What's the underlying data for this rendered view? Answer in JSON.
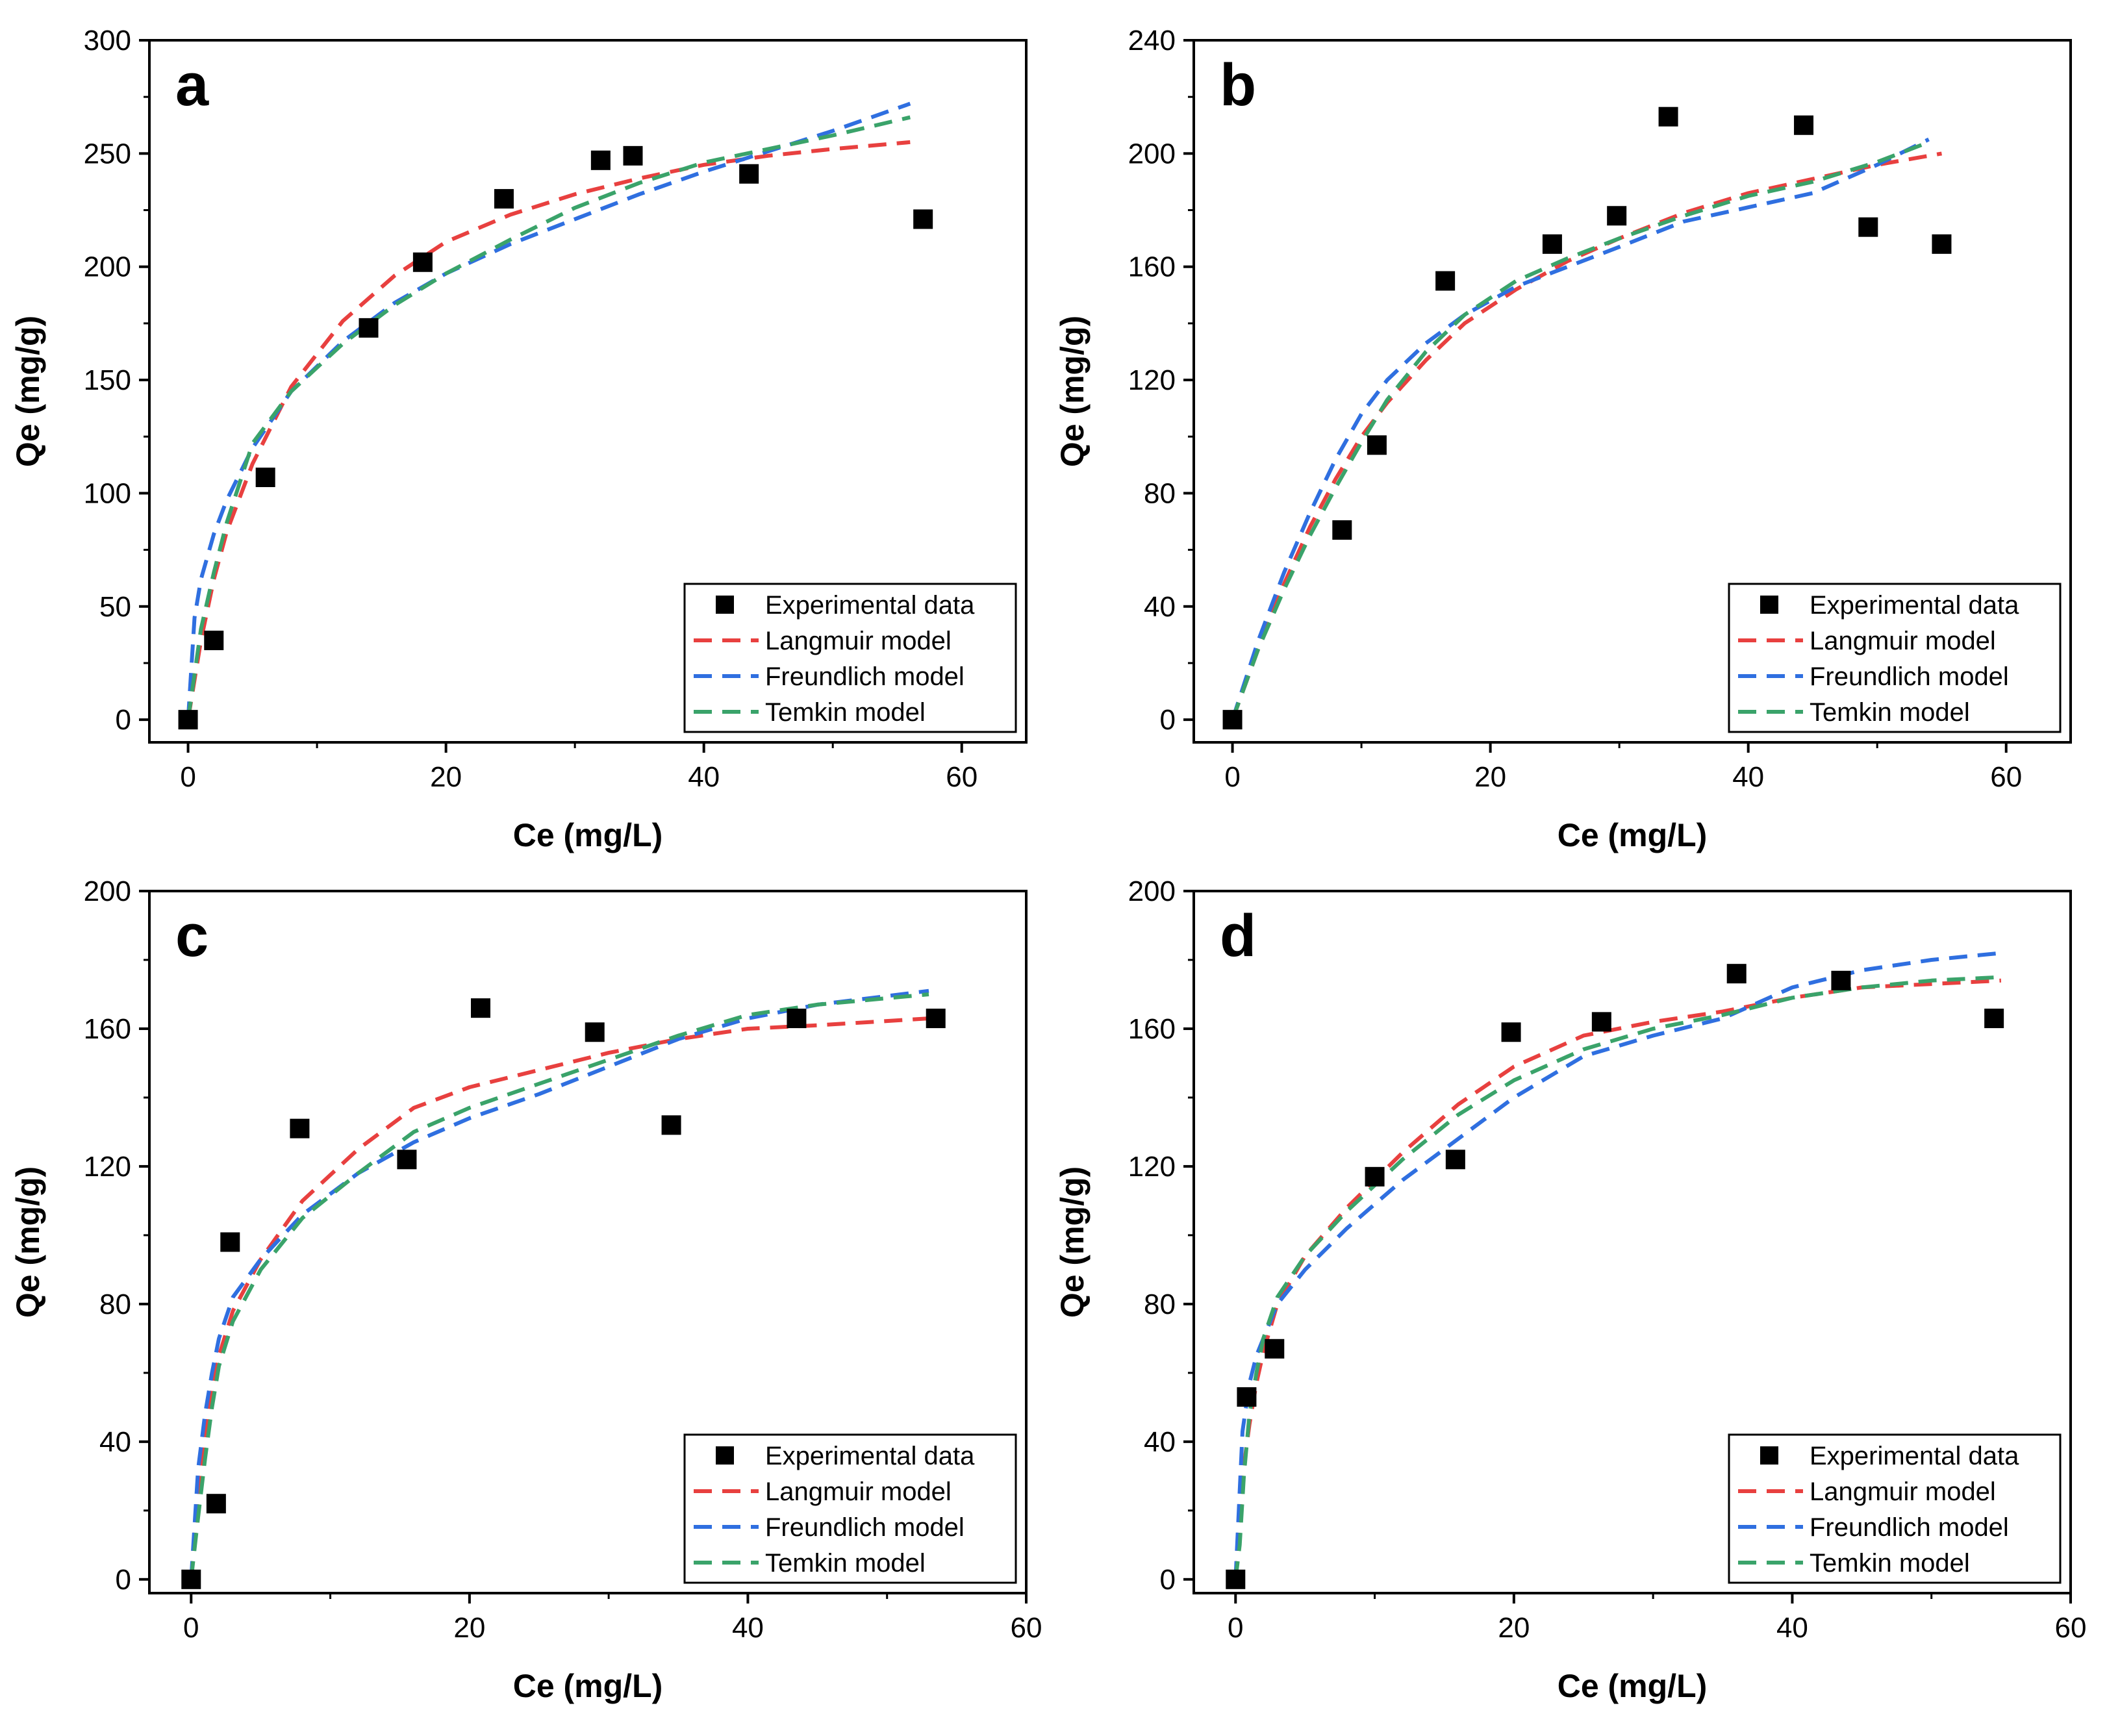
{
  "colors": {
    "langmuir": "#e8403f",
    "freundlich": "#2f6fe0",
    "temkin": "#3aa36a",
    "marker": "#000000"
  },
  "chart_data": [
    {
      "type": "scatter",
      "panel": "a",
      "xlabel": "Ce (mg/L)",
      "ylabel": "Qe (mg/g)",
      "xlim": [
        -3,
        65
      ],
      "ylim": [
        -10,
        300
      ],
      "xticks": [
        0,
        20,
        40,
        60
      ],
      "yticks": [
        0,
        50,
        100,
        150,
        200,
        250,
        300
      ],
      "legend_position": "bottom-right",
      "legend": [
        "Experimental data",
        "Langmuir model",
        "Freundlich model",
        "Temkin model"
      ],
      "series": [
        {
          "name": "Experimental data",
          "kind": "scatter",
          "x": [
            0,
            2,
            6,
            14,
            18.2,
            24.5,
            32,
            34.5,
            43.5,
            57
          ],
          "y": [
            0,
            35,
            107,
            173,
            202,
            230,
            247,
            249,
            241,
            221
          ]
        },
        {
          "name": "Langmuir model",
          "kind": "line",
          "x": [
            0,
            1,
            2,
            3,
            5,
            8,
            12,
            16,
            20,
            25,
            30,
            35,
            40,
            45,
            50,
            56
          ],
          "y": [
            0,
            35,
            62,
            83,
            113,
            147,
            176,
            196,
            211,
            223,
            232,
            239,
            245,
            249,
            252,
            255
          ]
        },
        {
          "name": "Freundlich model",
          "kind": "line",
          "x": [
            0,
            0.5,
            1,
            2,
            3,
            5,
            8,
            12,
            16,
            20,
            25,
            30,
            35,
            40,
            45,
            50,
            56
          ],
          "y": [
            0,
            45,
            62,
            82,
            97,
            120,
            145,
            167,
            184,
            197,
            210,
            221,
            232,
            242,
            251,
            260,
            272
          ]
        },
        {
          "name": "Temkin model",
          "kind": "line",
          "x": [
            0,
            0.5,
            1,
            2,
            3,
            5,
            8,
            12,
            16,
            20,
            25,
            30,
            35,
            40,
            45,
            50,
            56
          ],
          "y": [
            0,
            20,
            40,
            65,
            87,
            122,
            145,
            166,
            183,
            197,
            212,
            226,
            237,
            246,
            252,
            258,
            266
          ]
        }
      ]
    },
    {
      "type": "scatter",
      "panel": "b",
      "xlabel": "Ce (mg/L)",
      "ylabel": "Qe (mg/g)",
      "xlim": [
        -3,
        65
      ],
      "ylim": [
        -8,
        240
      ],
      "xticks": [
        0,
        20,
        40,
        60
      ],
      "yticks": [
        0,
        40,
        80,
        120,
        160,
        200,
        240
      ],
      "legend_position": "bottom-right",
      "legend": [
        "Experimental data",
        "Langmuir model",
        "Freundlich model",
        "Temkin model"
      ],
      "series": [
        {
          "name": "Experimental data",
          "kind": "scatter",
          "x": [
            0,
            8.5,
            11.2,
            16.5,
            24.8,
            29.8,
            33.8,
            44.3,
            49.3,
            55
          ],
          "y": [
            0,
            67,
            97,
            155,
            168,
            178,
            213,
            210,
            174,
            168
          ]
        },
        {
          "name": "Langmuir model",
          "kind": "line",
          "x": [
            0,
            2,
            4,
            6,
            8,
            10,
            12,
            15,
            18,
            22,
            26,
            30,
            35,
            40,
            45,
            50,
            55
          ],
          "y": [
            0,
            25,
            48,
            68,
            85,
            100,
            112,
            127,
            140,
            152,
            162,
            170,
            179,
            186,
            191,
            196,
            200
          ]
        },
        {
          "name": "Freundlich model",
          "kind": "line",
          "x": [
            0,
            2,
            4,
            6,
            8,
            10,
            12,
            15,
            18,
            22,
            26,
            30,
            35,
            40,
            45,
            50,
            54
          ],
          "y": [
            0,
            28,
            52,
            73,
            92,
            108,
            120,
            133,
            143,
            153,
            160,
            167,
            176,
            181,
            186,
            196,
            205
          ]
        },
        {
          "name": "Temkin model",
          "kind": "line",
          "x": [
            0,
            2,
            4,
            6,
            8,
            10,
            12,
            15,
            18,
            22,
            26,
            30,
            35,
            40,
            45,
            50,
            54
          ],
          "y": [
            0,
            25,
            46,
            65,
            82,
            98,
            113,
            130,
            143,
            155,
            163,
            170,
            178,
            185,
            190,
            197,
            204
          ]
        }
      ]
    },
    {
      "type": "scatter",
      "panel": "c",
      "xlabel": "Ce (mg/L)",
      "ylabel": "Qe (mg/g)",
      "xlim": [
        -3,
        60
      ],
      "ylim": [
        -4,
        200
      ],
      "xticks": [
        0,
        20,
        40,
        60
      ],
      "yticks": [
        0,
        40,
        80,
        120,
        160,
        200
      ],
      "legend_position": "bottom-right",
      "legend": [
        "Experimental data",
        "Langmuir model",
        "Freundlich model",
        "Temkin model"
      ],
      "series": [
        {
          "name": "Experimental data",
          "kind": "scatter",
          "x": [
            0,
            1.8,
            2.8,
            7.8,
            15.5,
            20.8,
            29,
            34.5,
            43.5,
            53.5
          ],
          "y": [
            0,
            22,
            98,
            131,
            122,
            166,
            159,
            132,
            163,
            163
          ]
        },
        {
          "name": "Langmuir model",
          "kind": "line",
          "x": [
            0,
            0.5,
            1,
            1.5,
            2,
            3,
            5,
            8,
            12,
            16,
            20,
            25,
            30,
            35,
            40,
            45,
            53
          ],
          "y": [
            0,
            25,
            40,
            55,
            65,
            78,
            93,
            110,
            125,
            137,
            143,
            148,
            153,
            157,
            160,
            161,
            163
          ]
        },
        {
          "name": "Freundlich model",
          "kind": "line",
          "x": [
            0,
            0.5,
            1,
            1.5,
            2,
            3,
            5,
            8,
            12,
            16,
            20,
            25,
            30,
            35,
            40,
            45,
            53
          ],
          "y": [
            0,
            32,
            48,
            60,
            70,
            82,
            93,
            106,
            118,
            127,
            134,
            141,
            149,
            157,
            163,
            167,
            171
          ]
        },
        {
          "name": "Temkin model",
          "kind": "line",
          "x": [
            0,
            0.5,
            1,
            1.5,
            2,
            3,
            5,
            8,
            12,
            16,
            20,
            25,
            30,
            35,
            40,
            45,
            53
          ],
          "y": [
            0,
            18,
            35,
            50,
            62,
            75,
            90,
            105,
            118,
            130,
            137,
            144,
            151,
            158,
            164,
            167,
            170
          ]
        }
      ]
    },
    {
      "type": "scatter",
      "panel": "d",
      "xlabel": "Ce (mg/L)",
      "ylabel": "Qe (mg/g)",
      "xlim": [
        -3,
        60
      ],
      "ylim": [
        -4,
        200
      ],
      "xticks": [
        0,
        20,
        40,
        60
      ],
      "yticks": [
        0,
        40,
        80,
        120,
        160,
        200
      ],
      "legend_position": "bottom-right",
      "legend": [
        "Experimental data",
        "Langmuir model",
        "Freundlich model",
        "Temkin model"
      ],
      "series": [
        {
          "name": "Experimental data",
          "kind": "scatter",
          "x": [
            0,
            0.8,
            2.8,
            10,
            15.8,
            19.8,
            26.3,
            36,
            43.5,
            54.5
          ],
          "y": [
            0,
            53,
            67,
            117,
            122,
            159,
            162,
            176,
            174,
            163
          ]
        },
        {
          "name": "Langmuir model",
          "kind": "line",
          "x": [
            0,
            0.5,
            1,
            1.5,
            2,
            3,
            5,
            8,
            12,
            16,
            20,
            25,
            30,
            35,
            40,
            45,
            50,
            55
          ],
          "y": [
            0,
            30,
            45,
            57,
            66,
            80,
            94,
            108,
            124,
            138,
            149,
            158,
            162,
            165,
            169,
            172,
            173,
            174
          ]
        },
        {
          "name": "Freundlich model",
          "kind": "line",
          "x": [
            0,
            0.5,
            1,
            1.5,
            2,
            3,
            5,
            8,
            12,
            16,
            20,
            25,
            30,
            35,
            40,
            45,
            50,
            55
          ],
          "y": [
            0,
            43,
            57,
            65,
            70,
            80,
            90,
            102,
            116,
            128,
            140,
            152,
            158,
            163,
            172,
            177,
            180,
            182
          ]
        },
        {
          "name": "Temkin model",
          "kind": "line",
          "x": [
            0,
            0.3,
            0.6,
            1,
            1.5,
            2,
            3,
            5,
            8,
            12,
            16,
            20,
            25,
            30,
            35,
            40,
            45,
            50,
            55
          ],
          "y": [
            0,
            10,
            30,
            48,
            60,
            70,
            82,
            94,
            107,
            122,
            135,
            145,
            154,
            160,
            164,
            169,
            172,
            174,
            175
          ]
        }
      ]
    }
  ]
}
